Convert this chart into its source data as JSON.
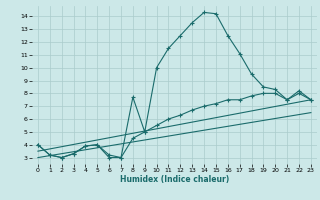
{
  "xlabel": "Humidex (Indice chaleur)",
  "bg_color": "#cce8e8",
  "grid_color": "#aacccc",
  "line_color": "#1a6b6b",
  "xlim": [
    -0.5,
    23.5
  ],
  "ylim": [
    2.5,
    14.8
  ],
  "xticks": [
    0,
    1,
    2,
    3,
    4,
    5,
    6,
    7,
    8,
    9,
    10,
    11,
    12,
    13,
    14,
    15,
    16,
    17,
    18,
    19,
    20,
    21,
    22,
    23
  ],
  "yticks": [
    3,
    4,
    5,
    6,
    7,
    8,
    9,
    10,
    11,
    12,
    13,
    14
  ],
  "series1_x": [
    0,
    1,
    2,
    3,
    4,
    5,
    6,
    7,
    8,
    9,
    10,
    11,
    12,
    13,
    14,
    15,
    16,
    17,
    18,
    19,
    20,
    21,
    22,
    23
  ],
  "series1_y": [
    4.0,
    3.2,
    3.0,
    3.3,
    3.9,
    4.0,
    3.0,
    3.0,
    7.7,
    5.0,
    10.0,
    11.5,
    12.5,
    13.5,
    14.3,
    14.2,
    12.5,
    11.1,
    9.5,
    8.5,
    8.3,
    7.5,
    8.2,
    7.5
  ],
  "series2_x": [
    0,
    1,
    2,
    3,
    4,
    5,
    6,
    7,
    8,
    9,
    10,
    11,
    12,
    13,
    14,
    15,
    16,
    17,
    18,
    19,
    20,
    21,
    22,
    23
  ],
  "series2_y": [
    4.0,
    3.2,
    3.0,
    3.3,
    3.9,
    4.0,
    3.2,
    3.0,
    4.5,
    5.0,
    5.5,
    6.0,
    6.3,
    6.7,
    7.0,
    7.2,
    7.5,
    7.5,
    7.8,
    8.0,
    8.0,
    7.5,
    8.0,
    7.5
  ],
  "series3_x": [
    0,
    23
  ],
  "series3_y": [
    3.5,
    7.5
  ],
  "series4_x": [
    0,
    23
  ],
  "series4_y": [
    3.0,
    6.5
  ]
}
